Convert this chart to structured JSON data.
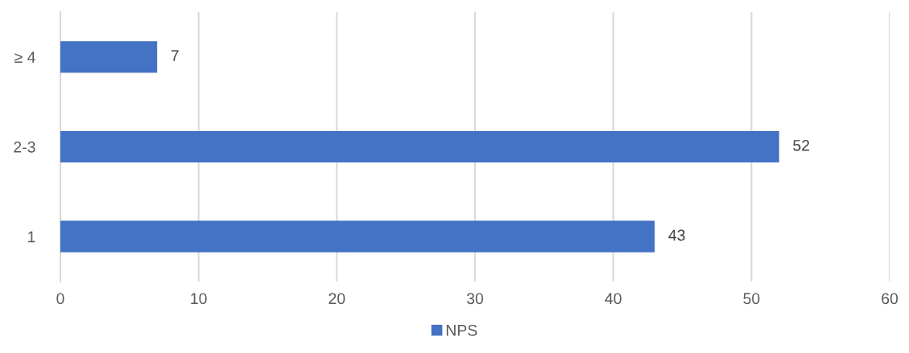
{
  "chart_data": {
    "type": "bar",
    "orientation": "horizontal",
    "categories": [
      "≥ 4",
      "2-3",
      "1"
    ],
    "series": [
      {
        "name": "NPS",
        "color": "#4472c4",
        "values": [
          7,
          52,
          43
        ]
      }
    ],
    "xlim": [
      0,
      60
    ],
    "xticks": [
      0,
      10,
      20,
      30,
      40,
      50,
      60
    ],
    "grid": "x",
    "legend": "bottom",
    "data_labels": true
  }
}
